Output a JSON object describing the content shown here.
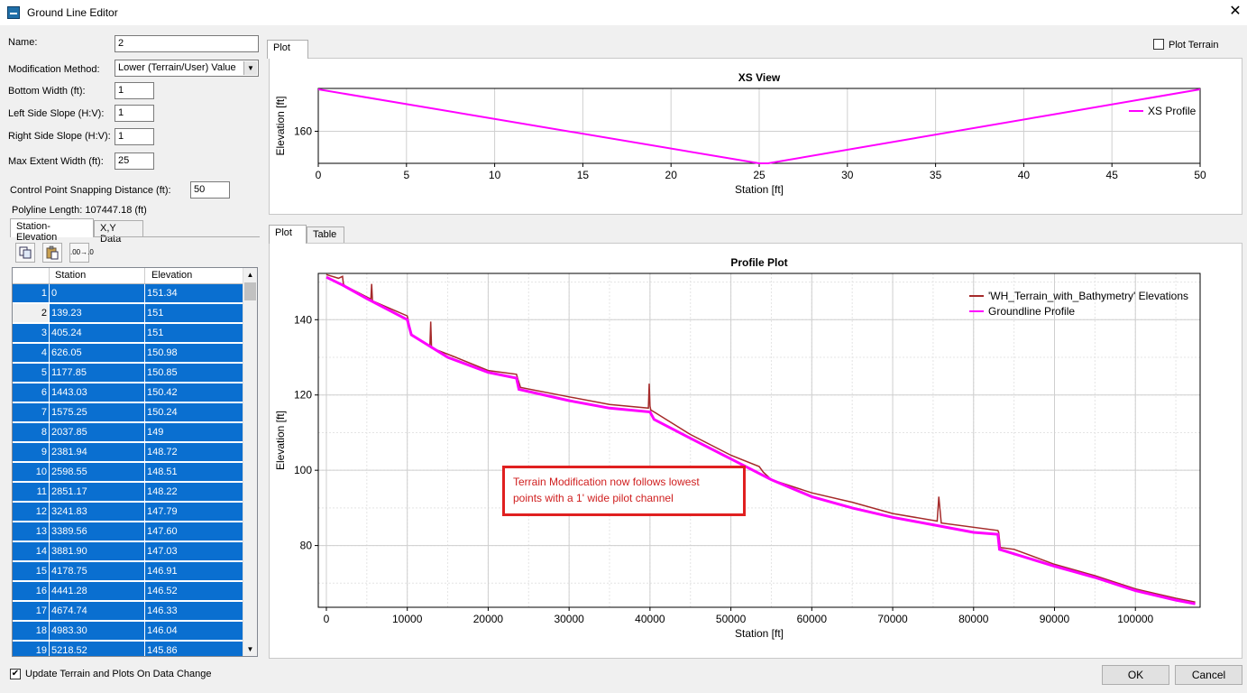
{
  "window": {
    "title": "Ground Line Editor",
    "close_glyph": "✕"
  },
  "form": {
    "name_label": "Name:",
    "name_value": "2",
    "method_label": "Modification Method:",
    "method_value": "Lower (Terrain/User) Value",
    "bottom_width_label": "Bottom Width (ft):",
    "bottom_width_value": "1",
    "left_slope_label": "Left Side Slope (H:V):",
    "left_slope_value": "1",
    "right_slope_label": "Right Side Slope (H:V):",
    "right_slope_value": "1",
    "max_extent_label": "Max Extent Width (ft):",
    "max_extent_value": "25",
    "snap_label": "Control Point Snapping Distance (ft):",
    "snap_value": "50",
    "polyline_length": "Polyline Length: 107447.18 (ft)"
  },
  "left_tabs": [
    "Station-Elevation",
    "X,Y Data"
  ],
  "toolbar": {
    "copy_icon": "copy-icon",
    "paste_icon": "paste-icon",
    "decimal_label": ".00→.0"
  },
  "table": {
    "headers": [
      "Station",
      "Elevation"
    ],
    "current_marker": "▶",
    "rows": [
      [
        "1",
        "0",
        "151.34"
      ],
      [
        "2",
        "139.23",
        "151"
      ],
      [
        "3",
        "405.24",
        "151"
      ],
      [
        "4",
        "626.05",
        "150.98"
      ],
      [
        "5",
        "1177.85",
        "150.85"
      ],
      [
        "6",
        "1443.03",
        "150.42"
      ],
      [
        "7",
        "1575.25",
        "150.24"
      ],
      [
        "8",
        "2037.85",
        "149"
      ],
      [
        "9",
        "2381.94",
        "148.72"
      ],
      [
        "10",
        "2598.55",
        "148.51"
      ],
      [
        "11",
        "2851.17",
        "148.22"
      ],
      [
        "12",
        "3241.83",
        "147.79"
      ],
      [
        "13",
        "3389.56",
        "147.60"
      ],
      [
        "14",
        "3881.90",
        "147.03"
      ],
      [
        "15",
        "4178.75",
        "146.91"
      ],
      [
        "16",
        "4441.28",
        "146.52"
      ],
      [
        "17",
        "4674.74",
        "146.33"
      ],
      [
        "18",
        "4983.30",
        "146.04"
      ],
      [
        "19",
        "5218.52",
        "145.86"
      ]
    ]
  },
  "update_checkbox": {
    "label": "Update Terrain and Plots On Data Change",
    "checked": true,
    "mark": "✔"
  },
  "top_plot": {
    "tab": "Plot",
    "plot_terrain_label": "Plot Terrain",
    "plot_terrain_checked": false
  },
  "bottom_tabs": [
    "Plot",
    "Table"
  ],
  "buttons": {
    "ok": "OK",
    "cancel": "Cancel"
  },
  "annotation": {
    "line1": "Terrain Modification now follows lowest",
    "line2": "points with a 1' wide pilot channel",
    "color": "#e02020"
  },
  "colors": {
    "profile": "#ff00ff",
    "terrain": "#a52a2a",
    "selection": "#0a6fd0"
  },
  "chart_data": [
    {
      "type": "line",
      "title": "XS View",
      "xlabel": "Station [ft]",
      "ylabel": "Elevation [ft]",
      "xlim": [
        0,
        50
      ],
      "xticks": [
        0,
        5,
        10,
        15,
        20,
        25,
        30,
        35,
        40,
        45,
        50
      ],
      "ylim": [
        149.3,
        174.3
      ],
      "yticks": [
        160
      ],
      "grid": true,
      "legend": "top-right",
      "series": [
        {
          "name": "XS Profile",
          "x": [
            0,
            25,
            25.5,
            50
          ],
          "y": [
            174,
            149.3,
            149.3,
            174
          ]
        }
      ]
    },
    {
      "type": "line",
      "title": "Profile Plot",
      "xlabel": "Station [ft]",
      "ylabel": "Elevation [ft]",
      "xlim": [
        -1000,
        108000
      ],
      "xticks": [
        0,
        10000,
        20000,
        30000,
        40000,
        50000,
        60000,
        70000,
        80000,
        90000,
        100000
      ],
      "ylim": [
        63.6,
        152.3
      ],
      "yticks": [
        80,
        100,
        120,
        140
      ],
      "grid": true,
      "legend": "top-right",
      "series": [
        {
          "name": "'WH_Terrain_with_Bathymetry' Elevations",
          "x": [
            0,
            1500,
            2000,
            2100,
            2300,
            5500,
            5600,
            5700,
            10000,
            10500,
            12800,
            12900,
            13000,
            16000,
            20000,
            23500,
            23700,
            24000,
            30000,
            35000,
            39800,
            39900,
            40000,
            40100,
            40500,
            45000,
            50000,
            53500,
            54000,
            55000,
            60000,
            65000,
            70000,
            75500,
            75700,
            76000,
            83000,
            83100,
            83300,
            85000,
            90000,
            95000,
            100000,
            105000,
            107400
          ],
          "y": [
            152,
            151,
            151.5,
            149.5,
            149,
            145.5,
            149.5,
            145,
            141,
            136,
            133,
            139.5,
            132.5,
            130,
            126.5,
            125.5,
            124,
            122,
            119.5,
            117.5,
            116.5,
            123,
            117,
            116,
            115.5,
            109.5,
            104,
            101,
            99.5,
            97.5,
            94,
            91.5,
            88.5,
            86.5,
            93,
            86,
            84,
            83.5,
            79.5,
            79,
            75,
            72,
            68.5,
            66,
            65
          ]
        },
        {
          "name": "Groundline Profile",
          "x": [
            0,
            2000,
            5000,
            10000,
            10500,
            15000,
            20000,
            23500,
            23800,
            30000,
            35000,
            40000,
            40500,
            45000,
            50000,
            55000,
            60000,
            65000,
            70000,
            75000,
            80000,
            83000,
            83200,
            90000,
            95000,
            100000,
            105000,
            107400
          ],
          "y": [
            151.3,
            149.2,
            145.6,
            140,
            136,
            130,
            126,
            124.5,
            121.5,
            118.5,
            116.5,
            115.5,
            113.5,
            108.5,
            103,
            97.5,
            93,
            90,
            87.5,
            85.5,
            83.5,
            83,
            79,
            74.5,
            71.5,
            68,
            65.5,
            64.5
          ]
        }
      ]
    }
  ]
}
